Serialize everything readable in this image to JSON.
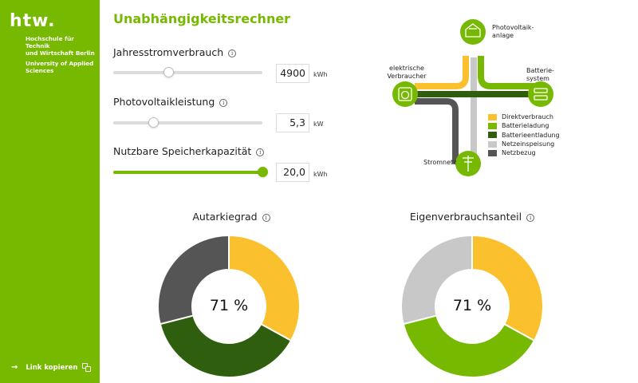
{
  "sidebar": {
    "logo": "htw.",
    "school_line1": "Hochschule für Technik",
    "school_line2": "und Wirtschaft Berlin",
    "school_line3": "University of Applied Sciences",
    "link_label": "Link kopieren"
  },
  "title": "Unabhängigkeitsrechner",
  "inputs": [
    {
      "label": "Jahresstromverbrauch",
      "value": "4900",
      "unit": "kWh",
      "fraction": 0.37
    },
    {
      "label": "Photovoltaikleistung",
      "value": "5,3",
      "unit": "kW",
      "fraction": 0.27
    },
    {
      "label": "Nutzbare Speicherkapazität",
      "value": "20,0",
      "unit": "kWh",
      "fraction": 1.0
    }
  ],
  "diagram": {
    "pv_label_1": "Photovoltaik-",
    "pv_label_2": "anlage",
    "consumer_label_1": "elektrische",
    "consumer_label_2": "Verbraucher",
    "battery_label_1": "Batterie-",
    "battery_label_2": "system",
    "grid_label": "Stromnetz",
    "legend": [
      {
        "label": "Direktverbrauch",
        "color": "#fbc02d"
      },
      {
        "label": "Batterieladung",
        "color": "#76b900"
      },
      {
        "label": "Batterieentladung",
        "color": "#2e5e0e"
      },
      {
        "label": "Netzeinspeisung",
        "color": "#c8c8c8"
      },
      {
        "label": "Netzbezug",
        "color": "#555555"
      }
    ]
  },
  "donuts": [
    {
      "title": "Autarkiegrad",
      "center": "71 %",
      "segments": [
        {
          "name": "Direktverbrauch",
          "share": 0.33,
          "color": "#fbc02d"
        },
        {
          "name": "Batterieentladung",
          "share": 0.38,
          "color": "#2e5e0e"
        },
        {
          "name": "Netzbezug",
          "share": 0.29,
          "color": "#555555"
        }
      ]
    },
    {
      "title": "Eigenverbrauchsanteil",
      "center": "71 %",
      "segments": [
        {
          "name": "Direktverbrauch",
          "share": 0.33,
          "color": "#fbc02d"
        },
        {
          "name": "Batterieladung",
          "share": 0.38,
          "color": "#76b900"
        },
        {
          "name": "Netzeinspeisung",
          "share": 0.29,
          "color": "#c8c8c8"
        }
      ]
    }
  ]
}
